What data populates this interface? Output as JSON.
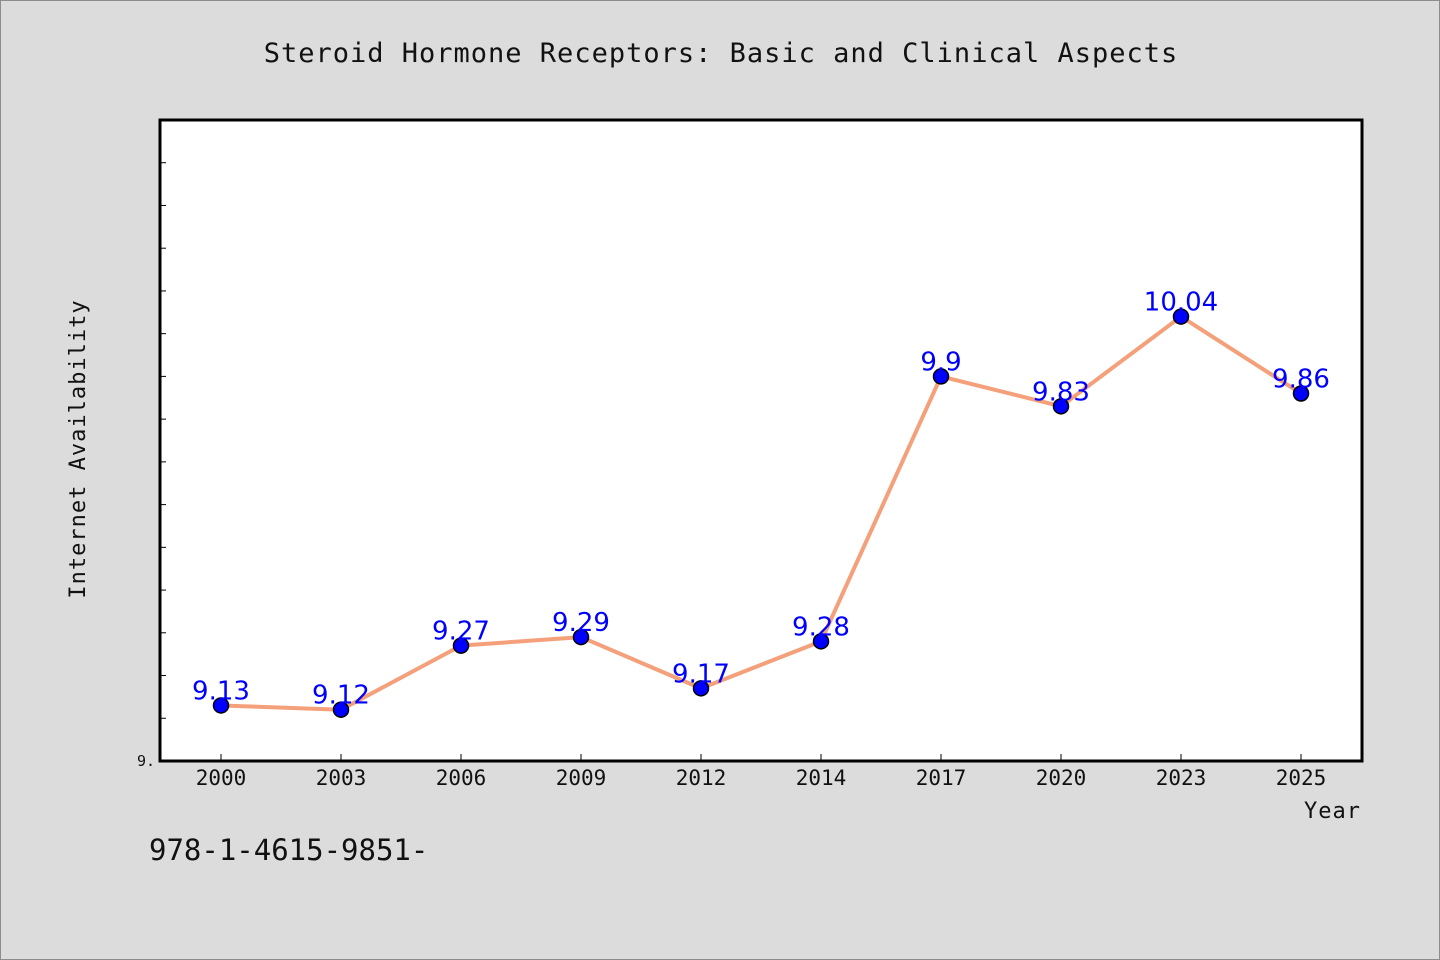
{
  "chart_data": {
    "type": "line",
    "title": "Steroid Hormone Receptors: Basic and Clinical Aspects",
    "xlabel": "Year",
    "ylabel": "Internet Availability",
    "categories": [
      "2000",
      "2003",
      "2006",
      "2009",
      "2012",
      "2014",
      "2017",
      "2020",
      "2023",
      "2025"
    ],
    "series": [
      {
        "values": [
          9.13,
          9.12,
          9.27,
          9.29,
          9.17,
          9.28,
          9.9,
          9.83,
          10.04,
          9.86
        ],
        "data_labels": [
          "9.13",
          "9.12",
          "9.27",
          "9.29",
          "9.17",
          "9.28",
          "9.9",
          "9.83",
          "10.04",
          "9.86"
        ]
      }
    ],
    "ylim": [
      9.0,
      10.5
    ],
    "y_tick_step": 0.1,
    "y_tick_labels": [
      {
        "value": 9.0,
        "label": "9."
      }
    ],
    "grid": false,
    "legend": "none",
    "colors": {
      "line": "#f4a07a",
      "marker_fill": "#0000ff",
      "marker_edge": "#000000",
      "data_label": "#0000ff",
      "plot_background": "#ffffff",
      "figure_background": "#dcdcdc"
    }
  },
  "footer": {
    "isbn_text": "978-1-4615-9851-"
  }
}
